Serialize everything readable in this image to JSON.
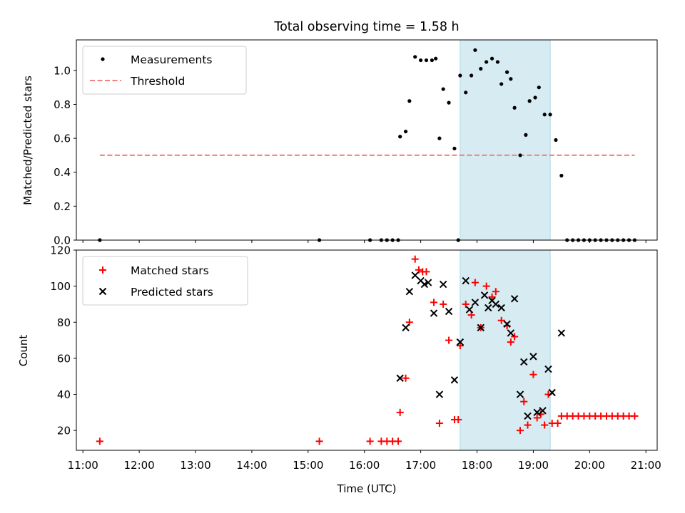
{
  "title": "Total observing time = 1.58 h",
  "chart_data": [
    {
      "panel": "top",
      "type": "scatter",
      "ylabel": "Matched/Predicted stars",
      "xlim": [
        "10:53",
        "21:12"
      ],
      "ylim": [
        0,
        1.18
      ],
      "yticks": [
        "0.0",
        "0.2",
        "0.4",
        "0.6",
        "0.8",
        "1.0"
      ],
      "shaded_span": [
        "17:42",
        "19:18"
      ],
      "legend_position": "upper left",
      "series": [
        {
          "name": "Measurements",
          "type": "scatter",
          "color": "#000000",
          "marker": "dot",
          "points": [
            [
              "11:18",
              0.0
            ],
            [
              "15:12",
              0.0
            ],
            [
              "16:06",
              0.0
            ],
            [
              "16:18",
              0.0
            ],
            [
              "16:24",
              0.0
            ],
            [
              "16:30",
              0.0
            ],
            [
              "16:36",
              0.0
            ],
            [
              "16:38",
              0.61
            ],
            [
              "16:44",
              0.64
            ],
            [
              "16:48",
              0.82
            ],
            [
              "16:54",
              1.08
            ],
            [
              "17:00",
              1.06
            ],
            [
              "17:06",
              1.06
            ],
            [
              "17:12",
              1.06
            ],
            [
              "17:16",
              1.07
            ],
            [
              "17:20",
              0.6
            ],
            [
              "17:24",
              0.89
            ],
            [
              "17:30",
              0.81
            ],
            [
              "17:36",
              0.54
            ],
            [
              "17:40",
              0.0
            ],
            [
              "17:42",
              0.97
            ],
            [
              "17:48",
              0.87
            ],
            [
              "17:54",
              0.97
            ],
            [
              "17:58",
              1.12
            ],
            [
              "18:04",
              1.01
            ],
            [
              "18:10",
              1.05
            ],
            [
              "18:16",
              1.07
            ],
            [
              "18:22",
              1.05
            ],
            [
              "18:26",
              0.92
            ],
            [
              "18:32",
              0.99
            ],
            [
              "18:36",
              0.95
            ],
            [
              "18:40",
              0.78
            ],
            [
              "18:46",
              0.5
            ],
            [
              "18:52",
              0.62
            ],
            [
              "18:56",
              0.82
            ],
            [
              "19:02",
              0.84
            ],
            [
              "19:06",
              0.9
            ],
            [
              "19:12",
              0.74
            ],
            [
              "19:18",
              0.74
            ],
            [
              "19:24",
              0.59
            ],
            [
              "19:30",
              0.38
            ],
            [
              "19:36",
              0.0
            ],
            [
              "19:42",
              0.0
            ],
            [
              "19:48",
              0.0
            ],
            [
              "19:54",
              0.0
            ],
            [
              "20:00",
              0.0
            ],
            [
              "20:06",
              0.0
            ],
            [
              "20:12",
              0.0
            ],
            [
              "20:18",
              0.0
            ],
            [
              "20:24",
              0.0
            ],
            [
              "20:30",
              0.0
            ],
            [
              "20:36",
              0.0
            ],
            [
              "20:42",
              0.0
            ],
            [
              "20:48",
              0.0
            ]
          ]
        },
        {
          "name": "Threshold",
          "type": "line",
          "style": "dashed",
          "color": "#f08080",
          "points": [
            [
              "11:18",
              0.5
            ],
            [
              "20:48",
              0.5
            ]
          ]
        }
      ]
    },
    {
      "panel": "bottom",
      "type": "scatter",
      "xlabel": "Time (UTC)",
      "ylabel": "Count",
      "xlim": [
        "10:53",
        "21:12"
      ],
      "ylim": [
        9,
        120
      ],
      "xticks": [
        "11:00",
        "12:00",
        "13:00",
        "14:00",
        "15:00",
        "16:00",
        "17:00",
        "18:00",
        "19:00",
        "20:00",
        "21:00"
      ],
      "yticks": [
        "20",
        "40",
        "60",
        "80",
        "100",
        "120"
      ],
      "shaded_span": [
        "17:42",
        "19:18"
      ],
      "legend_position": "upper left",
      "series": [
        {
          "name": "Matched stars",
          "marker": "plus",
          "color": "#ff0000",
          "points": [
            [
              "11:18",
              14
            ],
            [
              "15:12",
              14
            ],
            [
              "16:06",
              14
            ],
            [
              "16:18",
              14
            ],
            [
              "16:24",
              14
            ],
            [
              "16:30",
              14
            ],
            [
              "16:36",
              14
            ],
            [
              "16:38",
              30
            ],
            [
              "16:44",
              49
            ],
            [
              "16:48",
              80
            ],
            [
              "16:54",
              115
            ],
            [
              "16:58",
              109
            ],
            [
              "17:02",
              108
            ],
            [
              "17:06",
              108
            ],
            [
              "17:14",
              91
            ],
            [
              "17:20",
              24
            ],
            [
              "17:24",
              90
            ],
            [
              "17:30",
              70
            ],
            [
              "17:36",
              26
            ],
            [
              "17:40",
              26
            ],
            [
              "17:42",
              67
            ],
            [
              "17:48",
              90
            ],
            [
              "17:54",
              84
            ],
            [
              "17:58",
              102
            ],
            [
              "18:04",
              77
            ],
            [
              "18:10",
              100
            ],
            [
              "18:16",
              94
            ],
            [
              "18:20",
              97
            ],
            [
              "18:26",
              81
            ],
            [
              "18:32",
              78
            ],
            [
              "18:36",
              69
            ],
            [
              "18:40",
              72
            ],
            [
              "18:46",
              20
            ],
            [
              "18:50",
              36
            ],
            [
              "18:54",
              23
            ],
            [
              "19:00",
              51
            ],
            [
              "19:04",
              27
            ],
            [
              "19:08",
              29
            ],
            [
              "19:12",
              23
            ],
            [
              "19:16",
              40
            ],
            [
              "19:20",
              24
            ],
            [
              "19:26",
              24
            ],
            [
              "19:30",
              28
            ],
            [
              "19:36",
              28
            ],
            [
              "19:42",
              28
            ],
            [
              "19:48",
              28
            ],
            [
              "19:54",
              28
            ],
            [
              "20:00",
              28
            ],
            [
              "20:06",
              28
            ],
            [
              "20:12",
              28
            ],
            [
              "20:18",
              28
            ],
            [
              "20:24",
              28
            ],
            [
              "20:30",
              28
            ],
            [
              "20:36",
              28
            ],
            [
              "20:42",
              28
            ],
            [
              "20:48",
              28
            ]
          ]
        },
        {
          "name": "Predicted stars",
          "marker": "x",
          "color": "#000000",
          "points": [
            [
              "16:38",
              49
            ],
            [
              "16:44",
              77
            ],
            [
              "16:48",
              97
            ],
            [
              "16:54",
              106
            ],
            [
              "17:00",
              103
            ],
            [
              "17:04",
              101
            ],
            [
              "17:08",
              102
            ],
            [
              "17:14",
              85
            ],
            [
              "17:20",
              40
            ],
            [
              "17:24",
              101
            ],
            [
              "17:30",
              86
            ],
            [
              "17:36",
              48
            ],
            [
              "17:42",
              69
            ],
            [
              "17:48",
              103
            ],
            [
              "17:52",
              87
            ],
            [
              "17:58",
              91
            ],
            [
              "18:04",
              77
            ],
            [
              "18:08",
              95
            ],
            [
              "18:12",
              88
            ],
            [
              "18:16",
              92
            ],
            [
              "18:20",
              90
            ],
            [
              "18:26",
              88
            ],
            [
              "18:32",
              79
            ],
            [
              "18:36",
              74
            ],
            [
              "18:40",
              93
            ],
            [
              "18:46",
              40
            ],
            [
              "18:50",
              58
            ],
            [
              "18:54",
              28
            ],
            [
              "19:00",
              61
            ],
            [
              "19:04",
              30
            ],
            [
              "19:10",
              31
            ],
            [
              "19:16",
              54
            ],
            [
              "19:20",
              41
            ],
            [
              "19:30",
              74
            ]
          ]
        }
      ]
    }
  ]
}
